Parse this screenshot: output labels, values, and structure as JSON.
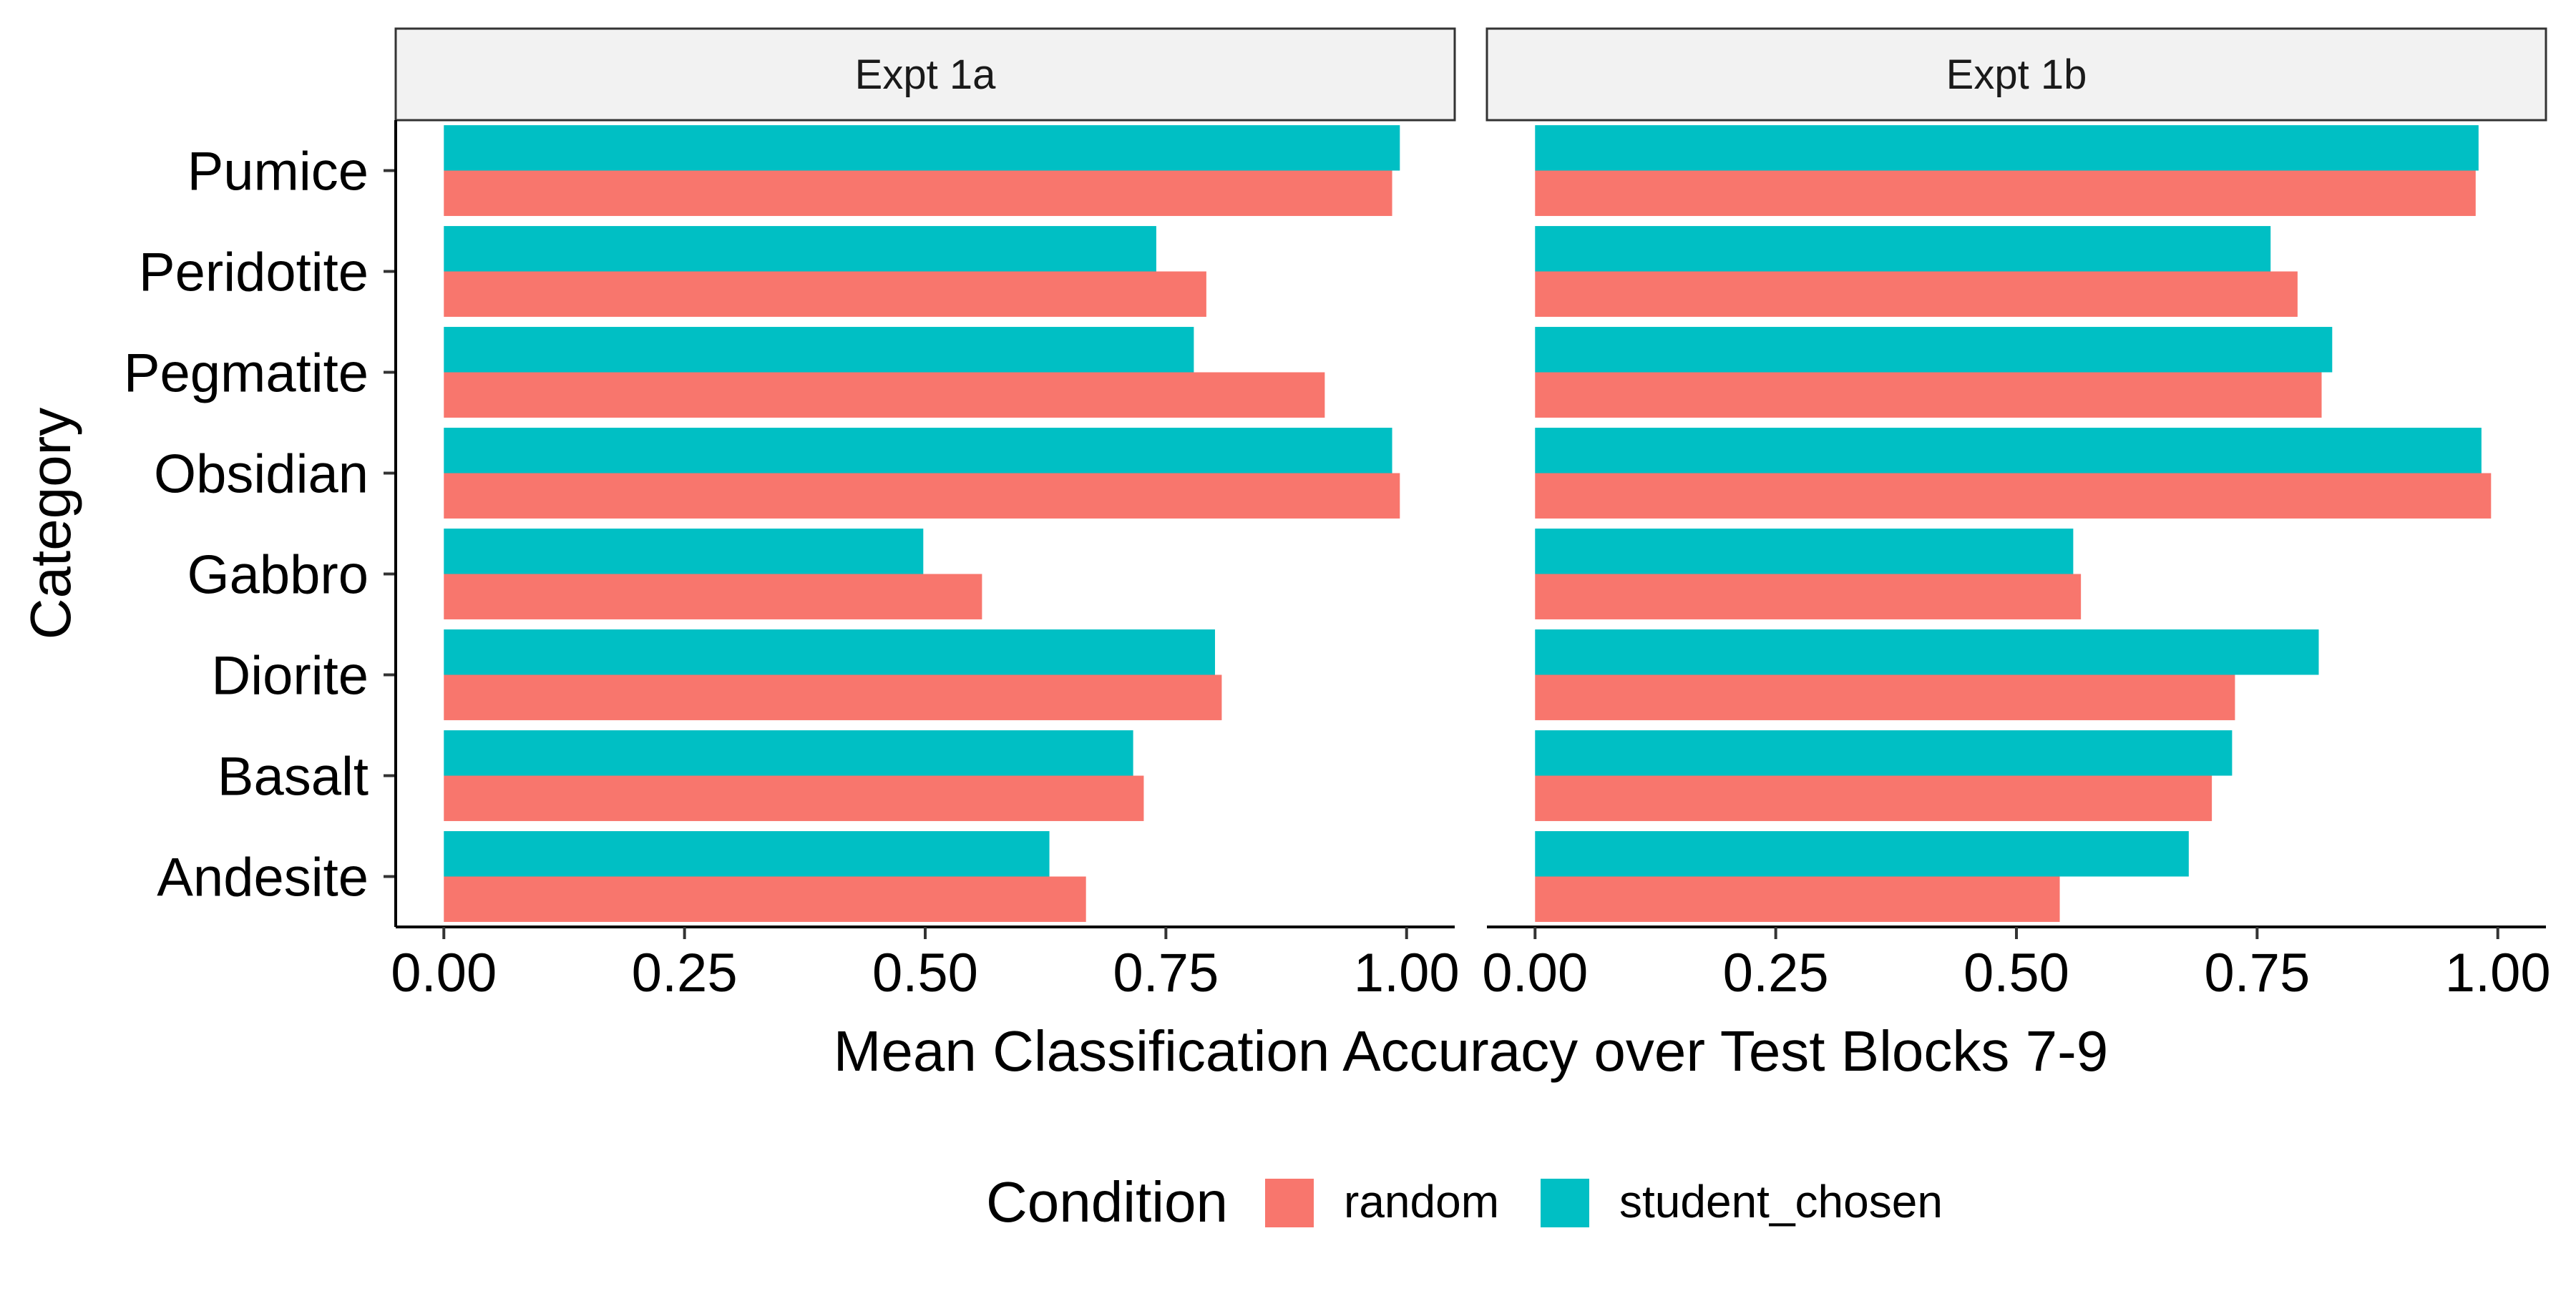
{
  "chart_data": {
    "type": "bar",
    "orientation": "horizontal",
    "facets": [
      "Expt 1a",
      "Expt 1b"
    ],
    "categories": [
      "Pumice",
      "Peridotite",
      "Pegmatite",
      "Obsidian",
      "Gabbro",
      "Diorite",
      "Basalt",
      "Andesite"
    ],
    "series": [
      {
        "name": "random",
        "color": "#F8766D",
        "values": {
          "Expt 1a": [
            0.985,
            0.792,
            0.915,
            0.993,
            0.559,
            0.808,
            0.727,
            0.667
          ],
          "Expt 1b": [
            0.977,
            0.792,
            0.817,
            0.993,
            0.567,
            0.727,
            0.703,
            0.545
          ]
        }
      },
      {
        "name": "student_chosen",
        "color": "#00BFC4",
        "values": {
          "Expt 1a": [
            0.993,
            0.74,
            0.779,
            0.985,
            0.498,
            0.801,
            0.716,
            0.629
          ],
          "Expt 1b": [
            0.98,
            0.764,
            0.828,
            0.983,
            0.559,
            0.814,
            0.724,
            0.679
          ]
        }
      }
    ],
    "xlabel": "Mean Classification Accuracy over Test Blocks 7-9",
    "ylabel": "Category",
    "xlim": [
      -0.05,
      1.05
    ],
    "xticks": [
      0,
      0.25,
      0.5,
      0.75,
      1
    ],
    "xtick_labels": [
      "0.00",
      "0.25",
      "0.50",
      "0.75",
      "1.00"
    ],
    "legend": {
      "title": "Condition",
      "position": "bottom",
      "entries": [
        "random",
        "student_chosen"
      ]
    },
    "grid": false
  }
}
